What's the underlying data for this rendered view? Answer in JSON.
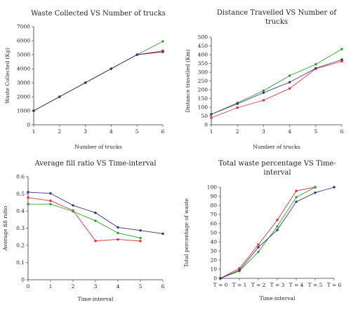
{
  "chart_data": [
    {
      "type": "line",
      "title": "Waste Collected VS Number of trucks",
      "title_lines": [
        "Waste Collected VS Number of trucks"
      ],
      "xlabel": "Number of trucks",
      "ylabel": "Waste Collected (Kg)",
      "x": [
        1,
        2,
        3,
        4,
        5,
        6
      ],
      "x_ticks": [
        "1",
        "2",
        "3",
        "4",
        "5",
        "6"
      ],
      "xlim": [
        1,
        6
      ],
      "ylim": [
        0,
        7000
      ],
      "y_ticks": [
        0,
        1000,
        2000,
        3000,
        4000,
        5000,
        6000,
        7000
      ],
      "grid": false,
      "series": [
        {
          "color": "#2ca02c",
          "marker": "circle",
          "values": [
            1000,
            2000,
            3000,
            4000,
            5000,
            5950
          ]
        },
        {
          "color": "#e8333a",
          "marker": "square",
          "values": [
            1000,
            2000,
            3000,
            4000,
            5000,
            5280
          ]
        },
        {
          "color": "#33337f",
          "marker": "circle",
          "values": [
            1000,
            2000,
            3000,
            4000,
            5000,
            5200
          ]
        }
      ]
    },
    {
      "type": "line",
      "title": "Distance Travelled VS Number of trucks",
      "title_lines": [
        "Distance Travelled VS Number of",
        "trucks"
      ],
      "xlabel": "Number of trucks",
      "ylabel": "Distance travelled (Km)",
      "x": [
        1,
        2,
        3,
        4,
        5,
        6
      ],
      "x_ticks": [
        "1",
        "2",
        "3",
        "4",
        "5",
        "6"
      ],
      "xlim": [
        1,
        6
      ],
      "ylim": [
        0,
        500
      ],
      "y_ticks": [
        0,
        50,
        100,
        150,
        200,
        250,
        300,
        350,
        400,
        450,
        500
      ],
      "grid": false,
      "series": [
        {
          "color": "#2ca02c",
          "marker": "circle",
          "values": [
            60,
            125,
            195,
            280,
            345,
            432
          ]
        },
        {
          "color": "#e8333a",
          "marker": "square",
          "values": [
            40,
            98,
            140,
            207,
            320,
            362
          ]
        },
        {
          "color": "#33337f",
          "marker": "circle",
          "values": [
            60,
            120,
            183,
            243,
            322,
            372
          ]
        }
      ]
    },
    {
      "type": "line",
      "title": "Average fill ratio VS Time-interval",
      "title_lines": [
        "Average fill ratio VS Time-interval"
      ],
      "xlabel": "Time-interval",
      "ylabel": "Average fill ratio",
      "x": [
        0,
        1,
        2,
        3,
        4,
        5,
        6
      ],
      "x_ticks": [
        "0",
        "1",
        "2",
        "3",
        "4",
        "5",
        "6"
      ],
      "xlim": [
        0,
        6
      ],
      "ylim": [
        0,
        0.6
      ],
      "y_ticks": [
        0,
        0.1,
        0.2,
        0.3,
        0.4,
        0.5,
        0.6
      ],
      "grid": false,
      "series": [
        {
          "color": "#33337f",
          "marker": "circle",
          "x": [
            0,
            1,
            2,
            3,
            4,
            5,
            6
          ],
          "values": [
            0.51,
            0.503,
            0.433,
            0.39,
            0.305,
            0.287,
            0.268
          ]
        },
        {
          "color": "#e8333a",
          "marker": "square",
          "x": [
            0,
            1,
            2,
            3,
            4,
            5
          ],
          "values": [
            0.478,
            0.46,
            0.403,
            0.226,
            0.235,
            0.225
          ]
        },
        {
          "color": "#2ca02c",
          "marker": "circle",
          "x": [
            0,
            1,
            2,
            3,
            4,
            5
          ],
          "values": [
            0.44,
            0.44,
            0.398,
            0.343,
            0.272,
            0.243
          ]
        }
      ]
    },
    {
      "type": "line",
      "title": "Total waste percentage VS Time-interval",
      "title_lines": [
        "Total waste percentage VS Time-",
        "interval"
      ],
      "xlabel": "Time-interval",
      "ylabel": "Total percentage of waste",
      "x": [
        0,
        1,
        2,
        3,
        4,
        5,
        6
      ],
      "x_ticks": [
        "T = 0",
        "T = 1",
        "T = 2",
        "T = 3",
        "T = 4",
        "T = 5",
        "T = 6"
      ],
      "xlim": [
        0,
        6
      ],
      "ylim": [
        0,
        100
      ],
      "y_ticks": [
        0,
        10,
        20,
        30,
        40,
        50,
        60,
        70,
        80,
        90,
        100
      ],
      "grid": false,
      "series": [
        {
          "color": "#e8333a",
          "marker": "square",
          "x": [
            0,
            1,
            2,
            3,
            4,
            5
          ],
          "values": [
            0,
            11,
            37,
            64,
            96,
            100
          ]
        },
        {
          "color": "#2ca02c",
          "marker": "circle",
          "x": [
            0,
            1,
            2,
            3,
            4,
            5
          ],
          "values": [
            0,
            8,
            29,
            57,
            89,
            100
          ]
        },
        {
          "color": "#33337f",
          "marker": "circle",
          "x": [
            0,
            1,
            2,
            3,
            4,
            5,
            6
          ],
          "values": [
            0,
            9,
            34,
            53,
            84,
            94,
            100
          ]
        }
      ]
    }
  ]
}
